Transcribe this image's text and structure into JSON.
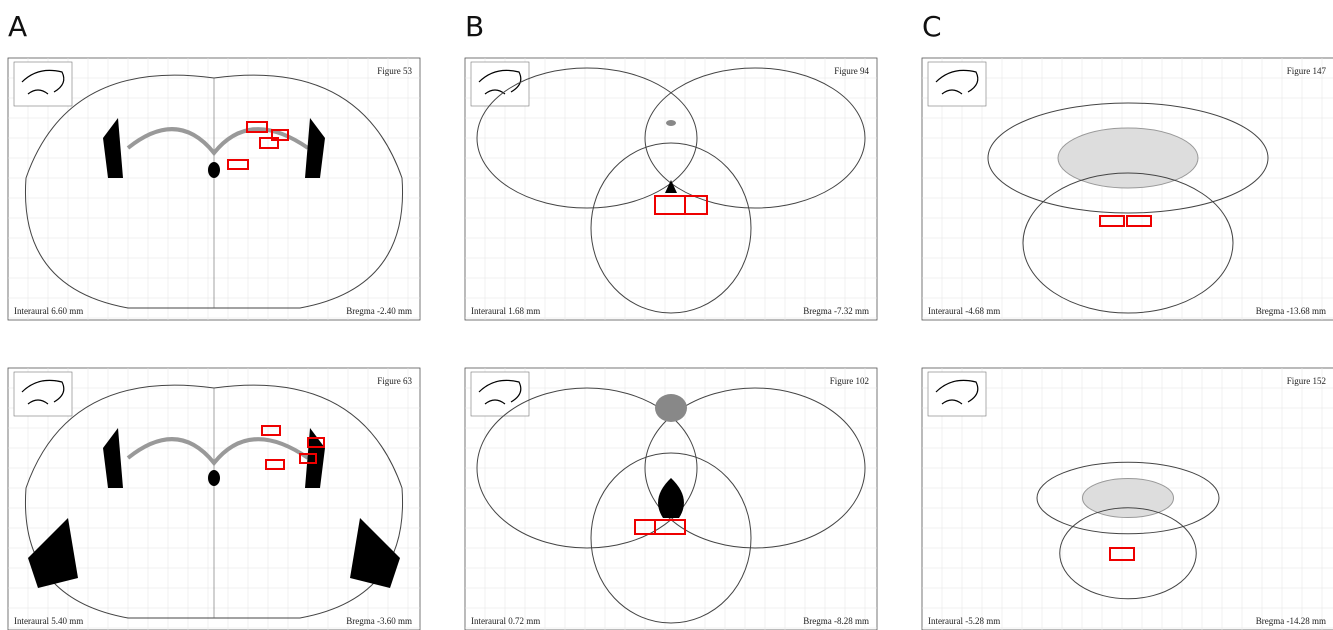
{
  "columns": [
    {
      "label": "A",
      "plates": [
        {
          "figure": "Figure 53",
          "interaural": "Interaural 6.60 mm",
          "bregma": "Bregma -2.40 mm"
        },
        {
          "figure": "Figure 63",
          "interaural": "Interaural 5.40 mm",
          "bregma": "Bregma -3.60 mm"
        }
      ]
    },
    {
      "label": "B",
      "plates": [
        {
          "figure": "Figure 94",
          "interaural": "Interaural 1.68 mm",
          "bregma": "Bregma -7.32 mm"
        },
        {
          "figure": "Figure 102",
          "interaural": "Interaural 0.72 mm",
          "bregma": "Bregma -8.28 mm"
        }
      ]
    },
    {
      "label": "C",
      "plates": [
        {
          "figure": "Figure 147",
          "interaural": "Interaural -4.68 mm",
          "bregma": "Bregma -13.68 mm"
        },
        {
          "figure": "Figure 152",
          "interaural": "Interaural -5.28 mm",
          "bregma": "Bregma -14.28 mm"
        }
      ]
    }
  ]
}
